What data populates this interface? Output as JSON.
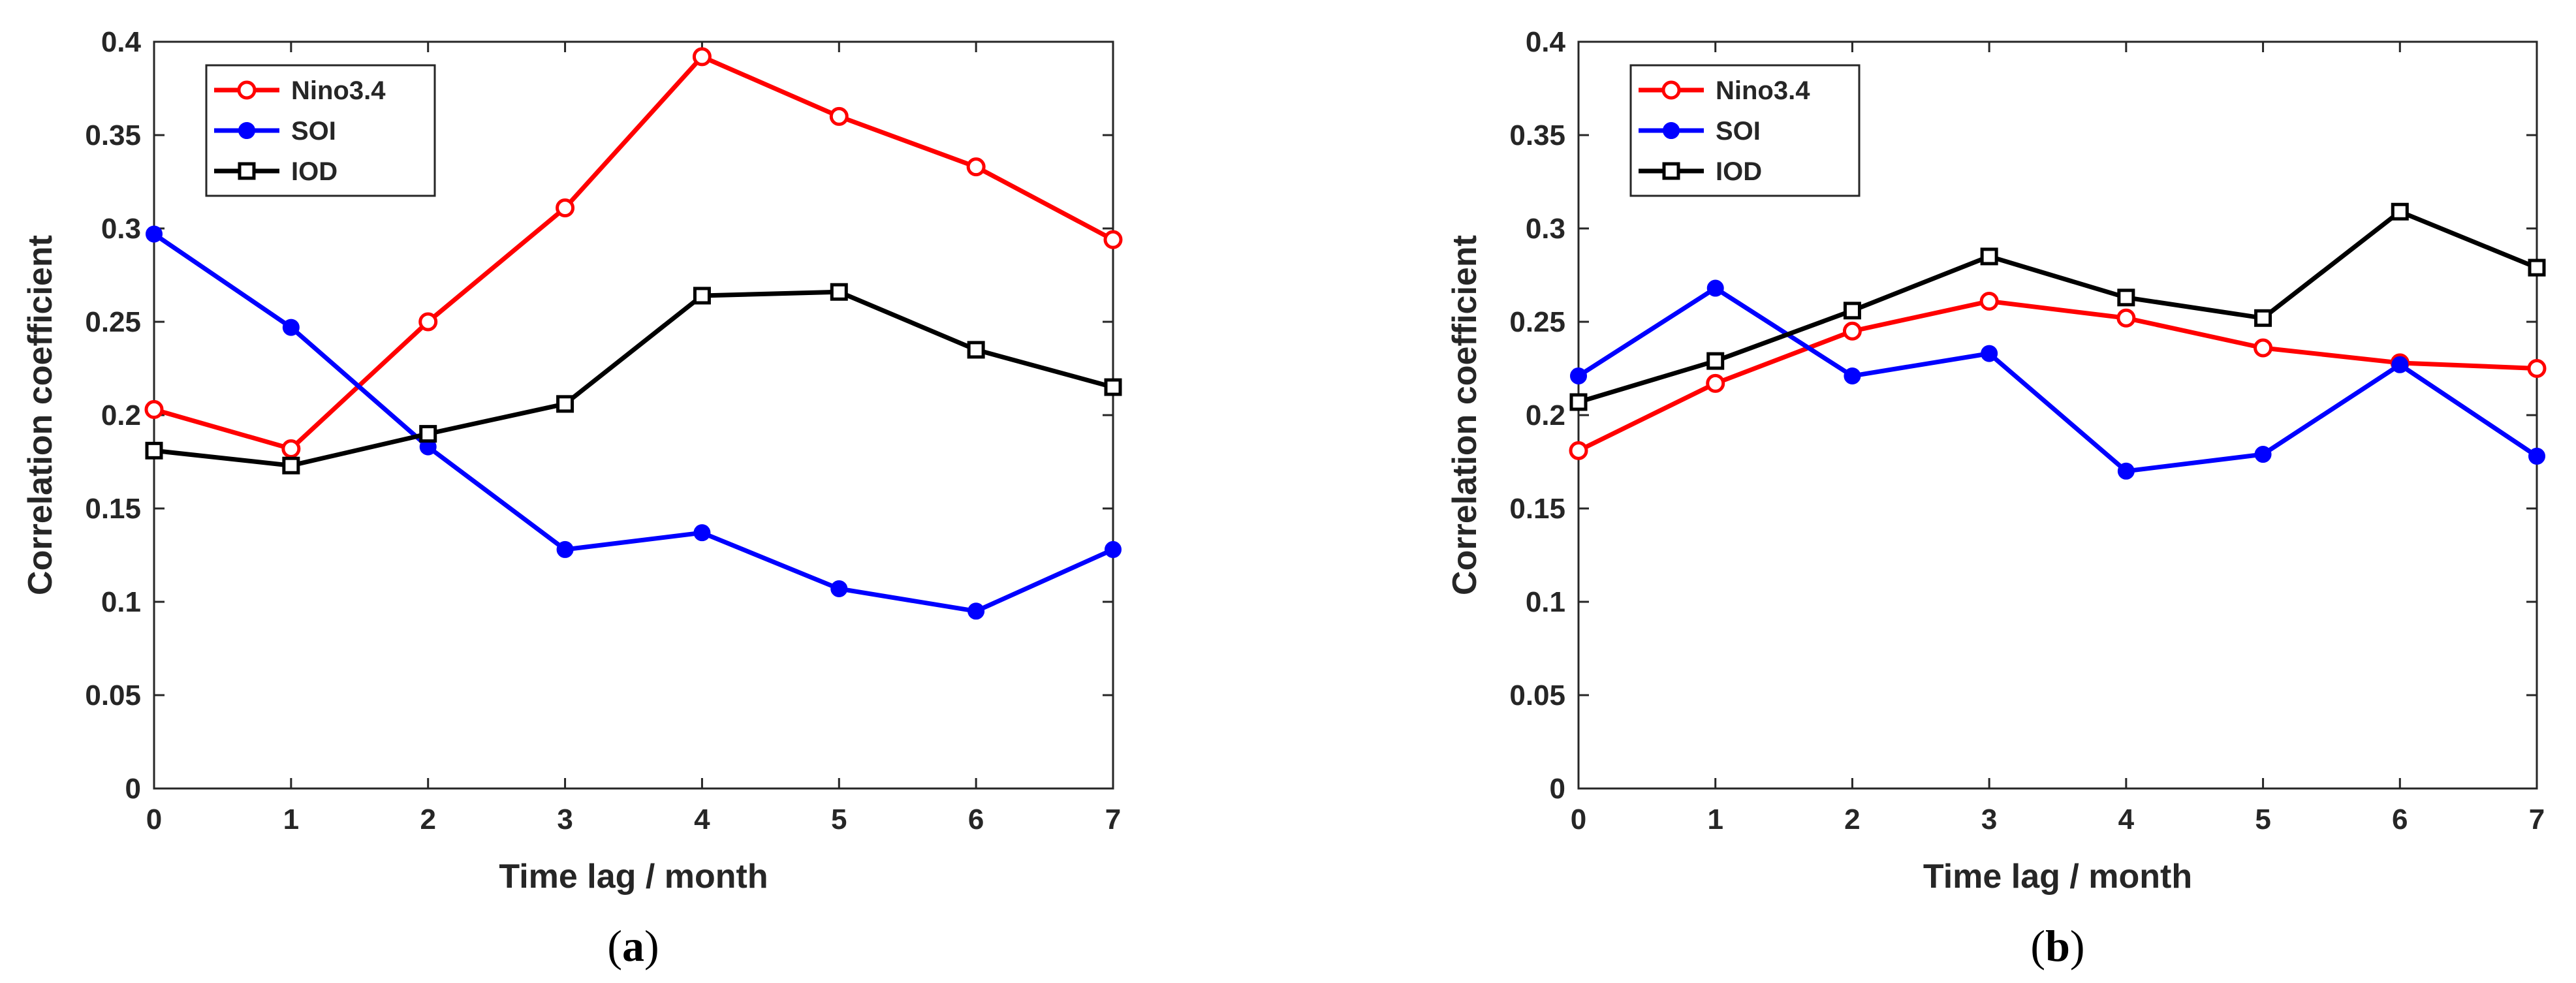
{
  "chart_data": [
    {
      "type": "line",
      "caption": "a",
      "xlabel": "Time lag / month",
      "ylabel": "Correlation coefficient",
      "xlim": [
        0,
        7
      ],
      "ylim": [
        0,
        0.4
      ],
      "x_ticks": [
        0,
        1,
        2,
        3,
        4,
        5,
        6,
        7
      ],
      "y_ticks": [
        0,
        0.05,
        0.1,
        0.15,
        0.2,
        0.25,
        0.3,
        0.35,
        0.4
      ],
      "y_tick_labels": [
        "0",
        "0.05",
        "0.1",
        "0.15",
        "0.2",
        "0.25",
        "0.3",
        "0.35",
        "0.4"
      ],
      "legend_position": "top-left",
      "x": [
        0,
        1,
        2,
        3,
        4,
        5,
        6,
        7
      ],
      "series": [
        {
          "name": "Nino3.4",
          "color": "#ff0000",
          "marker": "circle-open",
          "values": [
            0.203,
            0.182,
            0.25,
            0.311,
            0.392,
            0.36,
            0.333,
            0.294
          ]
        },
        {
          "name": "SOI",
          "color": "#0000ff",
          "marker": "circle-filled",
          "values": [
            0.297,
            0.247,
            0.183,
            0.128,
            0.137,
            0.107,
            0.095,
            0.128
          ]
        },
        {
          "name": "IOD",
          "color": "#000000",
          "marker": "square-open",
          "values": [
            0.181,
            0.173,
            0.19,
            0.206,
            0.264,
            0.266,
            0.235,
            0.215
          ]
        }
      ]
    },
    {
      "type": "line",
      "caption": "b",
      "xlabel": "Time lag / month",
      "ylabel": "Correlation coefficient",
      "xlim": [
        0,
        7
      ],
      "ylim": [
        0,
        0.4
      ],
      "x_ticks": [
        0,
        1,
        2,
        3,
        4,
        5,
        6,
        7
      ],
      "y_ticks": [
        0,
        0.05,
        0.1,
        0.15,
        0.2,
        0.25,
        0.3,
        0.35,
        0.4
      ],
      "y_tick_labels": [
        "0",
        "0.05",
        "0.1",
        "0.15",
        "0.2",
        "0.25",
        "0.3",
        "0.35",
        "0.4"
      ],
      "legend_position": "top-left",
      "x": [
        0,
        1,
        2,
        3,
        4,
        5,
        6,
        7
      ],
      "series": [
        {
          "name": "Nino3.4",
          "color": "#ff0000",
          "marker": "circle-open",
          "values": [
            0.181,
            0.217,
            0.245,
            0.261,
            0.252,
            0.236,
            0.228,
            0.225
          ]
        },
        {
          "name": "SOI",
          "color": "#0000ff",
          "marker": "circle-filled",
          "values": [
            0.221,
            0.268,
            0.221,
            0.233,
            0.17,
            0.179,
            0.227,
            0.178
          ]
        },
        {
          "name": "IOD",
          "color": "#000000",
          "marker": "square-open",
          "values": [
            0.207,
            0.229,
            0.256,
            0.285,
            0.263,
            0.252,
            0.309,
            0.279
          ]
        }
      ]
    }
  ]
}
